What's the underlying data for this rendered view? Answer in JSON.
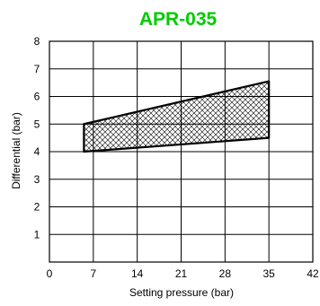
{
  "chart_data": {
    "type": "area",
    "title": "APR-035",
    "xlabel": "Setting pressure (bar)",
    "ylabel": "Differential (bar)",
    "xlim": [
      0,
      42
    ],
    "ylim": [
      0,
      8
    ],
    "x_ticks": [
      0,
      7,
      14,
      21,
      28,
      35,
      42
    ],
    "y_ticks": [
      1,
      2,
      3,
      4,
      5,
      6,
      7,
      8
    ],
    "y_tick_labels_shown": [
      1,
      2,
      3,
      4,
      5,
      6,
      7,
      8
    ],
    "grid": true,
    "legend": "none",
    "region": {
      "x": [
        5.5,
        35
      ],
      "upper": [
        5.0,
        6.55
      ],
      "lower": [
        4.0,
        4.5
      ],
      "fill": "crosshatch"
    },
    "colors": {
      "title": "#00cc00",
      "outline": "#000000",
      "grid": "#000000",
      "hatch": "#000000"
    }
  }
}
